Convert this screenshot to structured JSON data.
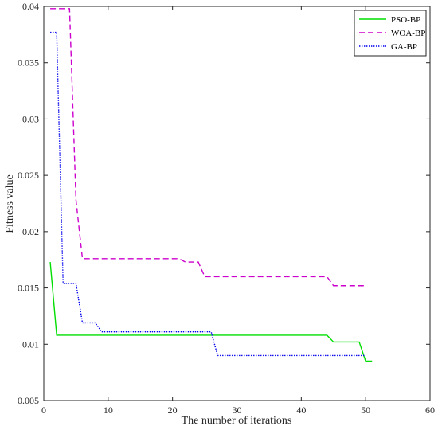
{
  "chart_data": {
    "type": "line",
    "xlabel": "The number of iterations",
    "ylabel": "Fitness value",
    "xlim": [
      0,
      60
    ],
    "ylim": [
      0.005,
      0.04
    ],
    "xticks": [
      0,
      10,
      20,
      30,
      40,
      50,
      60
    ],
    "yticks": [
      0.005,
      0.01,
      0.015,
      0.02,
      0.025,
      0.03,
      0.035,
      0.04
    ],
    "ytick_labels": [
      "0.005",
      "0.01",
      "0.015",
      "0.02",
      "0.025",
      "0.03",
      "0.035",
      "0.04"
    ],
    "grid": false,
    "legend_position": "top-right",
    "series": [
      {
        "name": "PSO-BP",
        "color": "#00dd00",
        "style": "solid",
        "points": [
          [
            1,
            0.0173
          ],
          [
            2,
            0.0108
          ],
          [
            44,
            0.0108
          ],
          [
            45,
            0.0102
          ],
          [
            49,
            0.0102
          ],
          [
            50,
            0.0085
          ],
          [
            51,
            0.0085
          ]
        ]
      },
      {
        "name": "WOA-BP",
        "color": "#cc00cc",
        "style": "dashed",
        "points": [
          [
            1,
            0.0398
          ],
          [
            4,
            0.0398
          ],
          [
            5,
            0.0228
          ],
          [
            6,
            0.0176
          ],
          [
            21,
            0.0176
          ],
          [
            22,
            0.0173
          ],
          [
            24,
            0.0173
          ],
          [
            25,
            0.016
          ],
          [
            44,
            0.016
          ],
          [
            45,
            0.0152
          ],
          [
            50,
            0.0152
          ]
        ]
      },
      {
        "name": "GA-BP",
        "color": "#0000ee",
        "style": "dotted",
        "points": [
          [
            1,
            0.0377
          ],
          [
            2,
            0.0377
          ],
          [
            3,
            0.0154
          ],
          [
            5,
            0.0154
          ],
          [
            6,
            0.0119
          ],
          [
            8,
            0.0119
          ],
          [
            9,
            0.0111
          ],
          [
            26,
            0.0111
          ],
          [
            27,
            0.009
          ],
          [
            50,
            0.009
          ]
        ]
      }
    ]
  }
}
